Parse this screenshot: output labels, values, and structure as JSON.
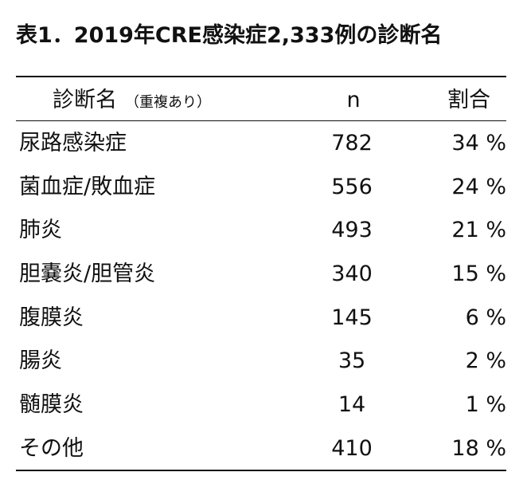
{
  "title": "表1．2019年CRE感染症2,333例の診断名",
  "header": {
    "name": "診断名",
    "note": "（重複あり）",
    "n": "n",
    "pct": "割合"
  },
  "rows": [
    {
      "name": "尿路感染症",
      "n": "782",
      "pct": "34 %"
    },
    {
      "name": "菌血症/敗血症",
      "n": "556",
      "pct": "24 %"
    },
    {
      "name": "肺炎",
      "n": "493",
      "pct": "21 %"
    },
    {
      "name": "胆嚢炎/胆管炎",
      "n": "340",
      "pct": "15 %"
    },
    {
      "name": "腹膜炎",
      "n": "145",
      "pct": "6 %"
    },
    {
      "name": "腸炎",
      "n": "35",
      "pct": "2 %"
    },
    {
      "name": "髄膜炎",
      "n": "14",
      "pct": "1 %"
    },
    {
      "name": "その他",
      "n": "410",
      "pct": "18 %"
    }
  ]
}
